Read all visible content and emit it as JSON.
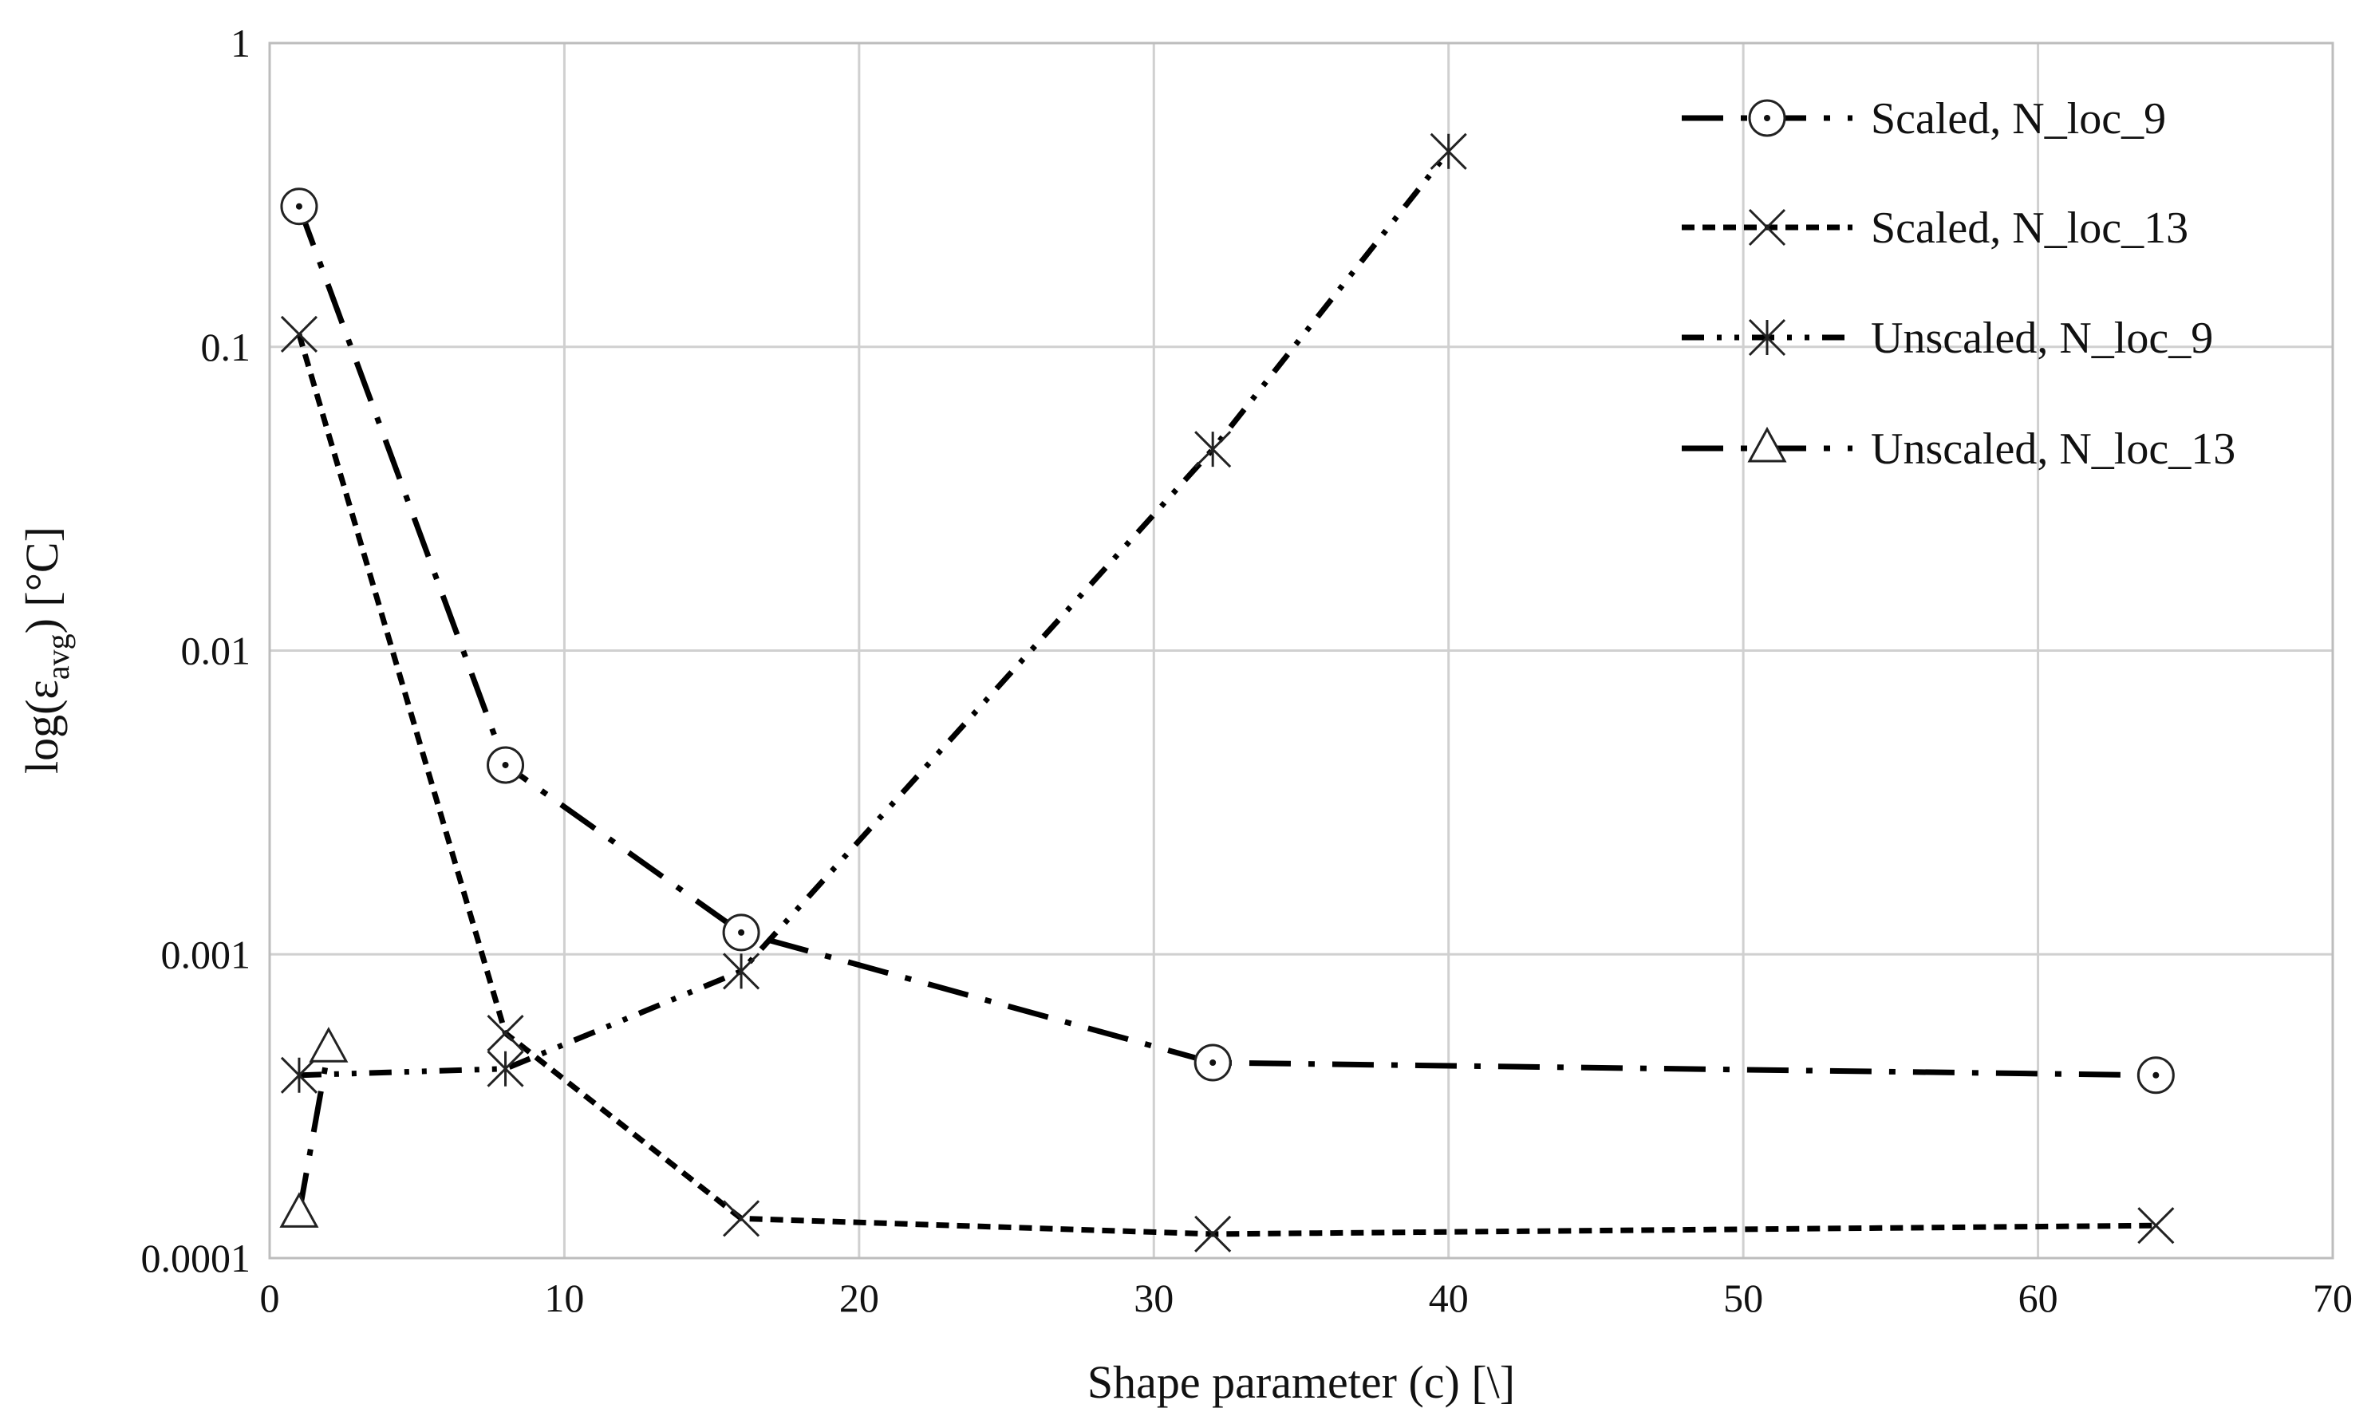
{
  "chart_data": {
    "type": "line",
    "title": "",
    "xlabel": "Shape parameter (c) [\\]",
    "ylabel": "log(ε",
    "ylabel_sub": "avg",
    "ylabel_suffix": ") [°C]",
    "xlim": [
      0,
      70
    ],
    "ylim": [
      0.0001,
      1
    ],
    "yscale": "log",
    "x_ticks": [
      0,
      10,
      20,
      30,
      40,
      50,
      60,
      70
    ],
    "x_tick_labels": [
      "0",
      "10",
      "20",
      "30",
      "40",
      "50",
      "60",
      "70"
    ],
    "y_ticks": [
      1,
      0.1,
      0.01,
      0.001,
      0.0001
    ],
    "y_tick_labels": [
      "1",
      "0.1",
      "0.01",
      "0.001",
      "0.0001"
    ],
    "grid": true,
    "legend_position": "top-right",
    "series": [
      {
        "name": "Scaled, N_loc_9",
        "marker": "circle",
        "dash": "long-dash-dot",
        "points": [
          [
            1,
            0.29
          ],
          [
            8,
            0.0042
          ],
          [
            16,
            0.00118
          ],
          [
            32,
            0.00044
          ],
          [
            64,
            0.0004
          ]
        ]
      },
      {
        "name": "Scaled, N_loc_13",
        "marker": "x",
        "dash": "short-dash",
        "points": [
          [
            1,
            0.11
          ],
          [
            8,
            0.00055
          ],
          [
            16,
            0.000135
          ],
          [
            32,
            0.00012
          ],
          [
            64,
            0.000128
          ]
        ]
      },
      {
        "name": "Unscaled, N_loc_9",
        "marker": "asterisk",
        "dash": "dash-dot-dot",
        "points": [
          [
            1,
            0.0004
          ],
          [
            8,
            0.00042
          ],
          [
            16,
            0.00088
          ],
          [
            32,
            0.046
          ],
          [
            40,
            0.44
          ]
        ]
      },
      {
        "name": "Unscaled, N_loc_13",
        "marker": "triangle",
        "dash": "long-dash-dot",
        "points": [
          [
            1,
            0.00014
          ],
          [
            2,
            0.00049
          ]
        ]
      }
    ]
  }
}
